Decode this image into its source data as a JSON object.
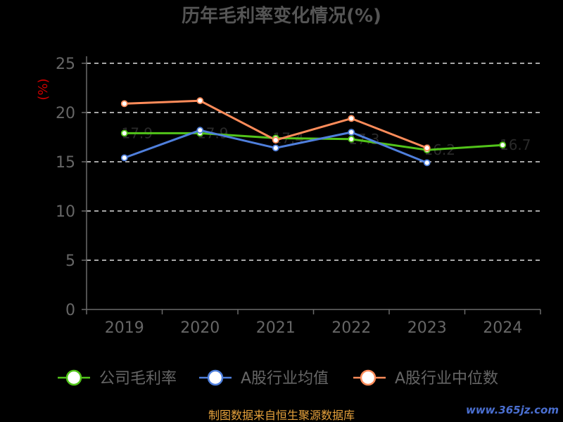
{
  "chart_data": {
    "type": "line",
    "title": "历年毛利率变化情况(%)",
    "ylabel": "(%)",
    "xlabel": "",
    "categories": [
      "2019",
      "2020",
      "2021",
      "2022",
      "2023",
      "2024"
    ],
    "ylim": [
      0,
      25
    ],
    "yticks": [
      0,
      5,
      10,
      15,
      20,
      25
    ],
    "grid": true,
    "legend": "bottom",
    "series": [
      {
        "name": "公司毛利率",
        "color": "#52c41a",
        "values": [
          17.9,
          17.9,
          17.4,
          17.3,
          16.2,
          16.7
        ],
        "data_labels": true
      },
      {
        "name": "A股行业均值",
        "color": "#4f7fdc",
        "values": [
          15.4,
          18.2,
          16.4,
          18.0,
          14.9,
          null
        ]
      },
      {
        "name": "A股行业中位数",
        "color": "#ff8c5a",
        "values": [
          20.9,
          21.2,
          17.2,
          19.4,
          16.4,
          null
        ]
      }
    ]
  },
  "footer": {
    "source": "制图数据来自恒生聚源数据库"
  },
  "watermark": {
    "text": "www.365jz.com"
  },
  "colors": {
    "background": "#000000",
    "title": "#555555",
    "ylabel": "#cc0000",
    "axis_text": "#666666",
    "source_text": "#e6a23c",
    "watermark": "#4a6fd0"
  }
}
